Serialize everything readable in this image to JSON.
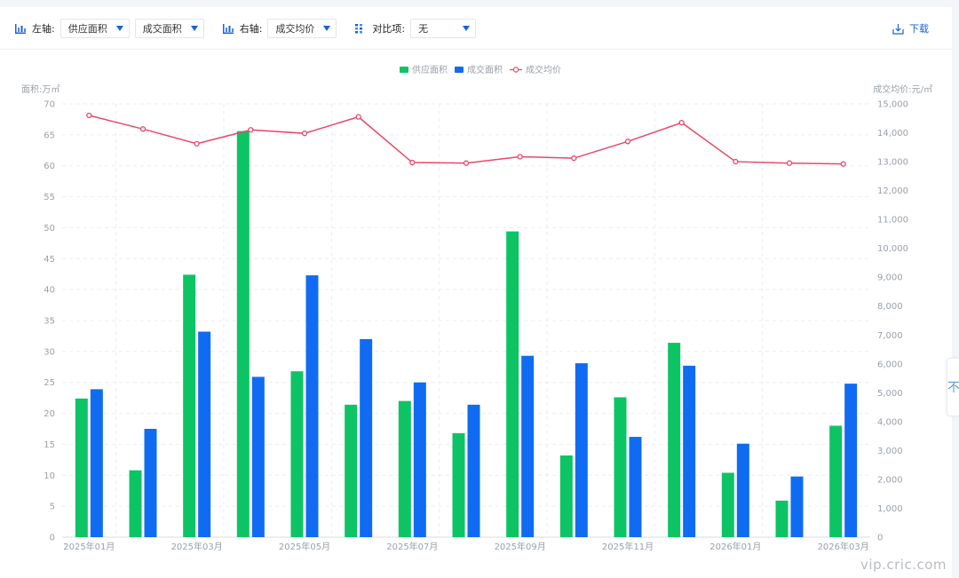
{
  "toolbar": {
    "left_axis_label": "左轴:",
    "left_axis_select_1": "供应面积",
    "left_axis_select_2": "成交面积",
    "right_axis_label": "右轴:",
    "right_axis_select": "成交均价",
    "compare_label": "对比项:",
    "compare_select": "无",
    "download_label": "下载"
  },
  "side_tab_glyph": "不",
  "watermark": "vip.cric.com",
  "colors": {
    "supply": "#0dc464",
    "deal": "#0f6cf2",
    "price": "#e8486a",
    "accent": "#1a62d6"
  },
  "chart_data": {
    "type": "bar",
    "left_axis_title": "面积:万㎡",
    "right_axis_title": "成交均价:元/㎡",
    "legend": [
      "供应面积",
      "成交面积",
      "成交均价"
    ],
    "legend_position": "top-center",
    "categories": [
      "2025年01月",
      "2025年02月",
      "2025年03月",
      "2025年04月",
      "2025年05月",
      "2025年06月",
      "2025年07月",
      "2025年08月",
      "2025年09月",
      "2025年10月",
      "2025年11月",
      "2025年12月",
      "2026年01月",
      "2026年02月",
      "2026年03月"
    ],
    "x_tick_labels": [
      "2025年01月",
      "",
      "2025年03月",
      "",
      "2025年05月",
      "",
      "2025年07月",
      "",
      "2025年09月",
      "",
      "2025年11月",
      "",
      "2026年01月",
      "",
      "2026年03月"
    ],
    "series": [
      {
        "name": "供应面积",
        "type": "bar",
        "axis": "left",
        "values": [
          22.4,
          10.8,
          42.4,
          65.6,
          26.8,
          21.4,
          22.0,
          16.8,
          49.4,
          13.2,
          22.6,
          31.4,
          10.4,
          5.9,
          18.0
        ]
      },
      {
        "name": "成交面积",
        "type": "bar",
        "axis": "left",
        "values": [
          23.9,
          17.5,
          33.2,
          25.9,
          42.3,
          32.0,
          25.0,
          21.4,
          29.3,
          28.1,
          16.2,
          27.7,
          15.1,
          9.8,
          24.8
        ]
      },
      {
        "name": "成交均价",
        "type": "line",
        "axis": "right",
        "values": [
          14600,
          14130,
          13620,
          14100,
          13980,
          14550,
          12970,
          12950,
          13170,
          13120,
          13700,
          14350,
          13000,
          12950,
          12920
        ]
      }
    ],
    "y_left_range": [
      0,
      70
    ],
    "y_left_ticks": [
      "0",
      "5",
      "10",
      "15",
      "20",
      "25",
      "30",
      "35",
      "40",
      "45",
      "50",
      "55",
      "60",
      "65",
      "70"
    ],
    "y_right_range": [
      0,
      15000
    ],
    "y_right_ticks": [
      "0",
      "1,000",
      "2,000",
      "3,000",
      "4,000",
      "5,000",
      "6,000",
      "7,000",
      "8,000",
      "9,000",
      "10,000",
      "11,000",
      "12,000",
      "13,000",
      "14,000",
      "15,000"
    ],
    "grid": true
  }
}
